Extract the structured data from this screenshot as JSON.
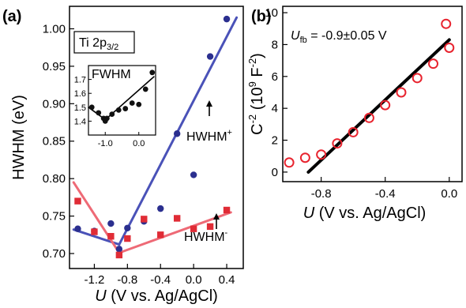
{
  "chart_data": [
    {
      "panel": "(a)",
      "type": "scatter",
      "xlabel_var": "U",
      "xlabel_rest": " (V vs. Ag/AgCl)",
      "ylabel": "HWHM (eV)",
      "xlim": [
        -1.5,
        0.6
      ],
      "ylim": [
        0.68,
        1.03
      ],
      "xticks": [
        -1.2,
        -0.8,
        -0.4,
        0.0,
        0.4
      ],
      "xtick_labels": [
        "-1.2",
        "-0.8",
        "-0.4",
        "0.0",
        "0.4"
      ],
      "yticks": [
        0.7,
        0.75,
        0.8,
        0.85,
        0.9,
        0.95,
        1.0
      ],
      "ytick_labels": [
        "0.70",
        "0.75",
        "0.80",
        "0.85",
        "0.90",
        "0.95",
        "1.00"
      ],
      "label_main": "Ti 2p",
      "label_sub": "3/2",
      "series": [
        {
          "name": "HWHM+",
          "marker": "circle",
          "color": "#2b2f8f",
          "x": [
            -1.4,
            -1.2,
            -1.0,
            -0.9,
            -0.8,
            -0.6,
            -0.4,
            -0.2,
            0.0,
            0.2,
            0.4
          ],
          "y": [
            0.733,
            0.73,
            0.74,
            0.706,
            0.734,
            0.743,
            0.76,
            0.86,
            0.805,
            0.963,
            1.013
          ]
        },
        {
          "name": "HWHM-",
          "marker": "square",
          "color": "#e02c36",
          "x": [
            -1.4,
            -1.2,
            -1.0,
            -0.9,
            -0.8,
            -0.6,
            -0.4,
            -0.2,
            0.0,
            0.2,
            0.4
          ],
          "y": [
            0.77,
            0.729,
            0.723,
            0.698,
            0.72,
            0.746,
            0.725,
            0.747,
            0.733,
            0.736,
            0.758
          ]
        }
      ],
      "fit_lines": [
        {
          "color": "#4a52b8",
          "x": [
            -1.45,
            -0.9,
            -0.9,
            0.52
          ],
          "y": [
            0.732,
            0.712,
            0.712,
            1.015
          ]
        },
        {
          "color": "#ee6a76",
          "x": [
            -1.45,
            -0.9,
            -0.9,
            0.45
          ],
          "y": [
            0.795,
            0.701,
            0.701,
            0.755
          ]
        }
      ],
      "annotations": [
        {
          "main": "HWHM",
          "sup": "+",
          "arrow": "up"
        },
        {
          "main": "HWHM",
          "sup": "-",
          "arrow": "up"
        }
      ],
      "inset": {
        "label": "FWHM",
        "xlim": [
          -1.5,
          0.5
        ],
        "ylim": [
          1.3,
          1.8
        ],
        "xticks": [
          -1.0,
          0.0
        ],
        "xtick_labels": [
          "-1.0",
          "0.0"
        ],
        "yticks": [
          1.4,
          1.5,
          1.6,
          1.7
        ],
        "ytick_labels": [
          "1.4",
          "1.5",
          "1.6",
          "1.7"
        ],
        "x": [
          -1.4,
          -1.2,
          -1.05,
          -1.0,
          -0.95,
          -0.8,
          -0.6,
          -0.4,
          -0.2,
          0.0,
          0.2,
          0.4
        ],
        "y": [
          1.5,
          1.46,
          1.42,
          1.4,
          1.42,
          1.45,
          1.48,
          1.49,
          1.53,
          1.52,
          1.63,
          1.75
        ],
        "fit": {
          "x": [
            -1.5,
            -1.0,
            -1.0,
            0.45
          ],
          "y": [
            1.5,
            1.41,
            1.41,
            1.72
          ]
        }
      }
    },
    {
      "panel": "(b)",
      "type": "scatter",
      "xlabel_var": "U",
      "xlabel_rest": " (V vs. Ag/AgCl)",
      "ylabel": "C^-2 (10^9 F^-2)",
      "xlim": [
        -1.04,
        0.08
      ],
      "ylim": [
        -0.6,
        10.4
      ],
      "xticks": [
        -0.8,
        -0.4,
        0.0
      ],
      "xtick_labels": [
        "-0.8",
        "-0.4",
        "0.0"
      ],
      "yticks": [
        0,
        2,
        4,
        6,
        8,
        10
      ],
      "ytick_labels": [
        "0",
        "2",
        "4",
        "6",
        "8",
        "10"
      ],
      "annotation_var": "U",
      "annotation_sub": "fb",
      "annotation_rest": " = -0.9±0.05 V",
      "series": [
        {
          "name": "",
          "marker": "open-circle",
          "color": "#e8242f",
          "x": [
            -1.0,
            -0.9,
            -0.8,
            -0.7,
            -0.6,
            -0.5,
            -0.4,
            -0.3,
            -0.2,
            -0.1,
            0.0
          ],
          "y": [
            0.6,
            0.9,
            1.1,
            1.8,
            2.5,
            3.4,
            4.2,
            5.0,
            5.9,
            6.8,
            7.8
          ]
        },
        {
          "name": "",
          "marker": "open-circle",
          "color": "#e8242f",
          "x": [
            -0.02
          ],
          "y": [
            9.3
          ]
        }
      ],
      "fit_lines": [
        {
          "color": "#000000",
          "x": [
            -0.88,
            0.0
          ],
          "y": [
            0.0,
            8.3
          ]
        }
      ]
    }
  ]
}
